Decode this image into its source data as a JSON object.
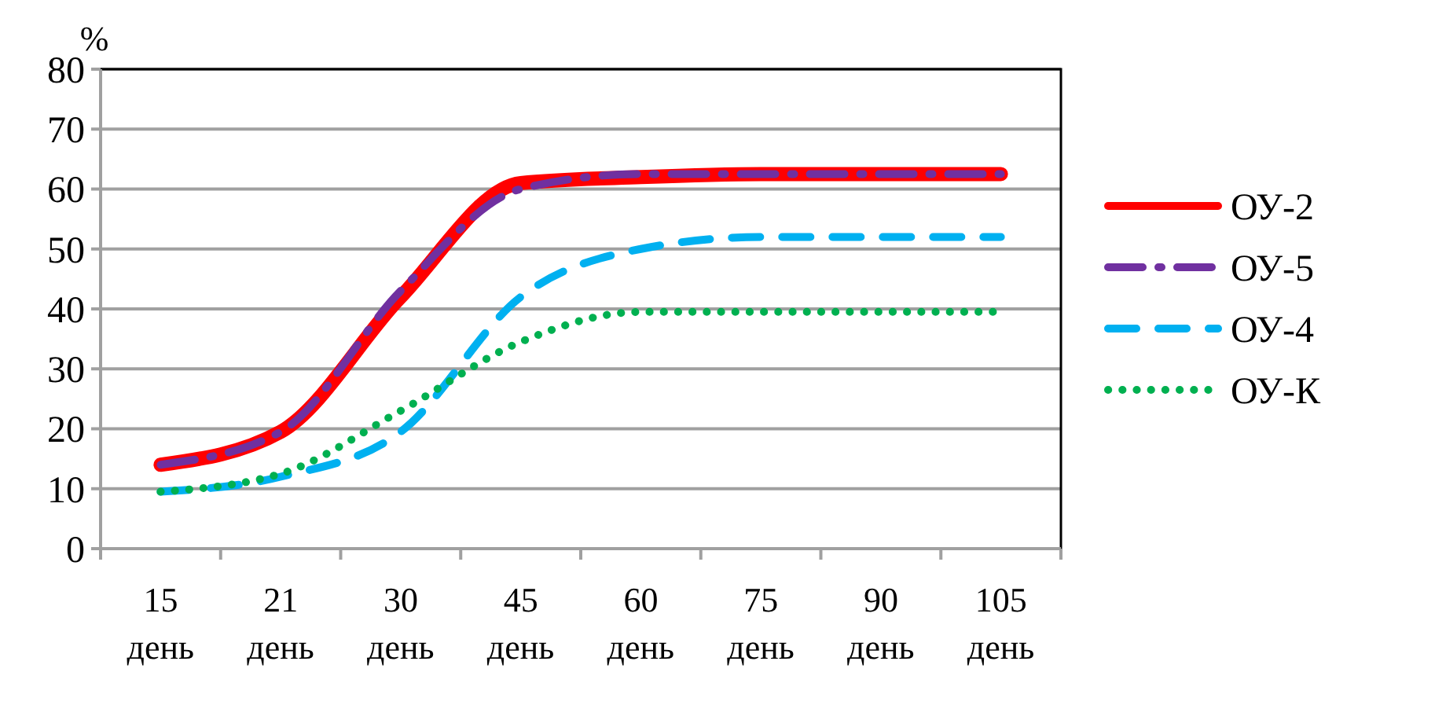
{
  "chart_data": {
    "type": "line",
    "ylabel": "%",
    "categories": [
      "15 день",
      "21 день",
      "30 день",
      "45 день",
      "60 день",
      "75 день",
      "90 день",
      "105 день"
    ],
    "ylim": [
      0,
      80
    ],
    "yticks": [
      0,
      10,
      20,
      30,
      40,
      50,
      60,
      70,
      80
    ],
    "grid": "y",
    "legend": "right",
    "marker": "none",
    "series": [
      {
        "name": "ОУ-2",
        "color": "#ff0000",
        "line_style": "solid",
        "values": [
          14,
          19.5,
          42,
          61,
          62,
          62.5,
          62.5,
          62.5
        ]
      },
      {
        "name": "ОУ-5",
        "color": "#7030a0",
        "line_style": "dashed",
        "values": [
          14,
          19.5,
          43,
          60,
          62.5,
          62.5,
          62.5,
          62.5
        ]
      },
      {
        "name": "ОУ-4",
        "color": "#00b0f0",
        "line_style": "dashed",
        "values": [
          9.5,
          12,
          19.5,
          42,
          50,
          52,
          52,
          52
        ]
      },
      {
        "name": "ОУ-К",
        "color": "#00b050",
        "line_style": "dotted",
        "values": [
          9.5,
          12.5,
          23,
          34.5,
          39.5,
          39.5,
          39.5,
          39.5
        ]
      }
    ]
  }
}
